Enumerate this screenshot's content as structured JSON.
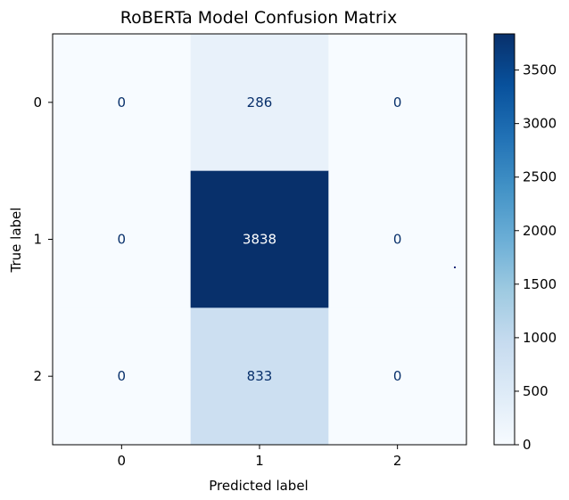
{
  "chart_data": {
    "type": "heatmap",
    "title": "RoBERTa Model Confusion Matrix",
    "xlabel": "Predicted label",
    "ylabel": "True label",
    "x_categories": [
      "0",
      "1",
      "2"
    ],
    "y_categories": [
      "0",
      "1",
      "2"
    ],
    "values": [
      [
        0,
        286,
        0
      ],
      [
        0,
        3838,
        0
      ],
      [
        0,
        833,
        0
      ]
    ],
    "colormap": "Blues",
    "colorbar": {
      "ticks": [
        0,
        500,
        1000,
        1500,
        2000,
        2500,
        3000,
        3500
      ],
      "range": [
        0,
        3838
      ]
    },
    "text_color_light_cell": "#08306b",
    "text_color_dark_cell": "#ffffff"
  }
}
